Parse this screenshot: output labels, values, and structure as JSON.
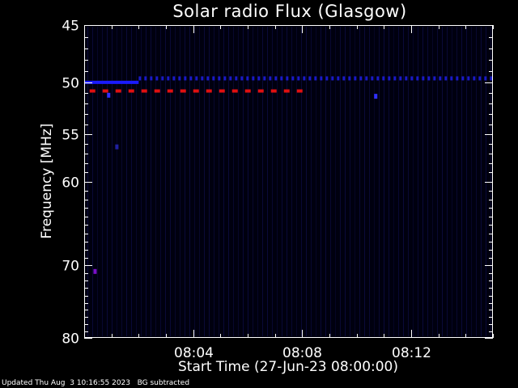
{
  "chart_data": {
    "type": "heatmap",
    "title": "Solar radio Flux (Glasgow)",
    "xlabel": "Start Time (27-Jun-23 08:00:00)",
    "ylabel": "Frequency [MHz]",
    "x_unit": "minutes after 08:00:00",
    "xlim": [
      0,
      15
    ],
    "x_ticks": [
      {
        "value": 4,
        "label": "08:04"
      },
      {
        "value": 8,
        "label": "08:08"
      },
      {
        "value": 12,
        "label": "08:12"
      }
    ],
    "ylim": [
      45,
      80
    ],
    "y_scale": "log",
    "y_ticks": [
      {
        "value": 45,
        "label": "45"
      },
      {
        "value": 50,
        "label": "50"
      },
      {
        "value": 55,
        "label": "55"
      },
      {
        "value": 60,
        "label": "60"
      },
      {
        "value": 70,
        "label": "70"
      },
      {
        "value": 80,
        "label": "80"
      }
    ],
    "background_color": "#00000f",
    "features": [
      {
        "kind": "band",
        "freq": 50.0,
        "x_start": 0.0,
        "x_end": 2.0,
        "color": "#1a1aff",
        "style": "solid"
      },
      {
        "kind": "band",
        "freq": 49.6,
        "x_start": 2.0,
        "x_end": 15.0,
        "color": "#1a1ac8",
        "style": "dotted"
      },
      {
        "kind": "band",
        "freq": 50.8,
        "x_start": 0.2,
        "x_end": 8.0,
        "color": "#e01010",
        "style": "dashed"
      },
      {
        "kind": "spot",
        "freq": 51.2,
        "x": 0.9,
        "color": "#3030ff"
      },
      {
        "kind": "spot",
        "freq": 51.3,
        "x": 10.7,
        "color": "#3030ff"
      },
      {
        "kind": "spot",
        "freq": 56.3,
        "x": 1.2,
        "color": "#2020a0"
      },
      {
        "kind": "spot",
        "freq": 70.8,
        "x": 0.4,
        "color": "#7a10c8"
      }
    ]
  },
  "footer": {
    "updated": "Updated Thu Aug  3 10:16:55 2023",
    "note": "BG subtracted"
  }
}
